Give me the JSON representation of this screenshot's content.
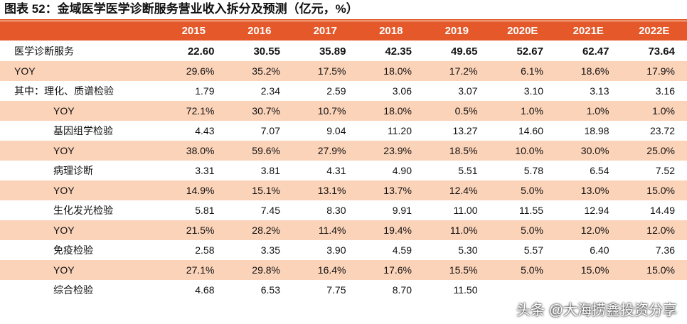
{
  "header": {
    "title": "图表 52：金域医学医学诊断服务营业收入拆分及预测（亿元，%）"
  },
  "table": {
    "columns": [
      "2015",
      "2016",
      "2017",
      "2018",
      "2019",
      "2020E",
      "2021E",
      "2022E"
    ],
    "rows": [
      {
        "label": "医学诊断服务",
        "values": [
          "22.60",
          "30.55",
          "35.89",
          "42.35",
          "49.65",
          "52.67",
          "62.47",
          "73.64"
        ]
      },
      {
        "label": "YOY",
        "values": [
          "29.6%",
          "35.2%",
          "17.5%",
          "18.0%",
          "17.2%",
          "6.1%",
          "18.6%",
          "17.9%"
        ]
      },
      {
        "label": "其中：理化、质谱检验",
        "values": [
          "1.79",
          "2.34",
          "2.59",
          "3.06",
          "3.07",
          "3.10",
          "3.13",
          "3.16"
        ]
      },
      {
        "label": "YOY",
        "values": [
          "72.1%",
          "30.7%",
          "10.7%",
          "18.0%",
          "0.5%",
          "1.0%",
          "1.0%",
          "1.0%"
        ]
      },
      {
        "label": "基因组学检验",
        "values": [
          "4.43",
          "7.07",
          "9.04",
          "11.20",
          "13.27",
          "14.60",
          "18.98",
          "23.72"
        ]
      },
      {
        "label": "YOY",
        "values": [
          "38.0%",
          "59.6%",
          "27.9%",
          "23.9%",
          "18.5%",
          "10.0%",
          "30.0%",
          "25.0%"
        ]
      },
      {
        "label": "病理诊断",
        "values": [
          "3.31",
          "3.81",
          "4.31",
          "4.90",
          "5.51",
          "5.78",
          "6.54",
          "7.52"
        ]
      },
      {
        "label": "YOY",
        "values": [
          "14.9%",
          "15.1%",
          "13.1%",
          "13.7%",
          "12.4%",
          "5.0%",
          "13.0%",
          "15.0%"
        ]
      },
      {
        "label": "生化发光检验",
        "values": [
          "5.81",
          "7.45",
          "8.30",
          "9.91",
          "11.00",
          "11.55",
          "12.94",
          "14.49"
        ]
      },
      {
        "label": "YOY",
        "values": [
          "21.5%",
          "28.2%",
          "11.4%",
          "19.4%",
          "11.0%",
          "5.0%",
          "12.0%",
          "12.0%"
        ]
      },
      {
        "label": "免疫检验",
        "values": [
          "2.58",
          "3.35",
          "3.90",
          "4.59",
          "5.30",
          "5.57",
          "6.40",
          "7.36"
        ]
      },
      {
        "label": "YOY",
        "values": [
          "27.1%",
          "29.8%",
          "16.4%",
          "17.6%",
          "15.5%",
          "5.0%",
          "15.0%",
          "15.0%"
        ]
      },
      {
        "label": "综合检验",
        "values": [
          "4.68",
          "6.53",
          "7.75",
          "8.70",
          "11.50",
          "",
          "",
          ""
        ]
      }
    ]
  },
  "watermark": "头条 @大海捞鑫投资分享"
}
